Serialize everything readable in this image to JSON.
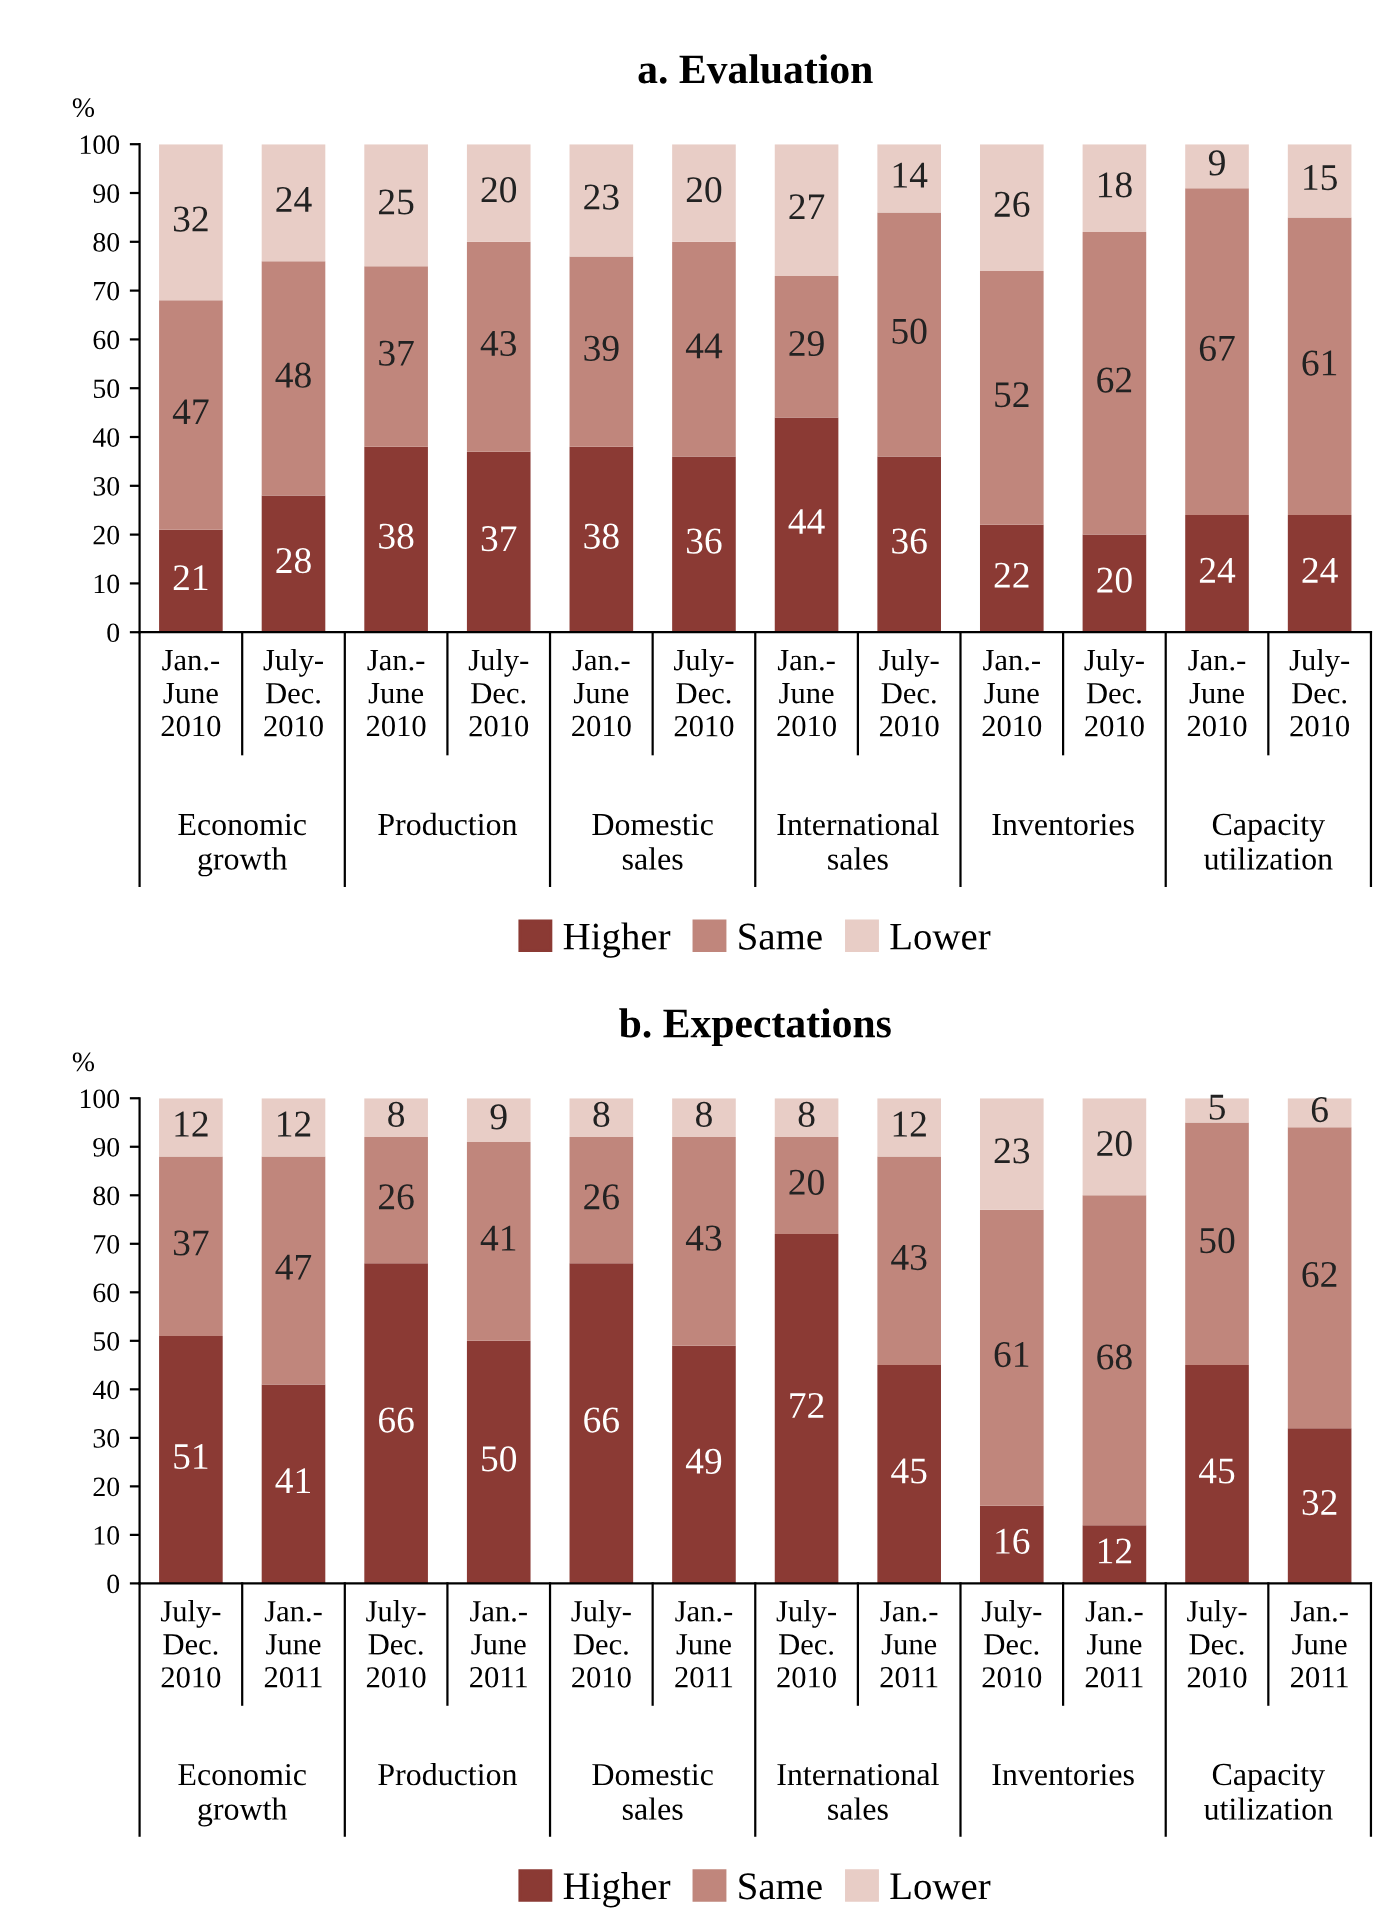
{
  "chart_data": [
    {
      "type": "bar",
      "title": "a. Evaluation",
      "ylabel": "%",
      "stacked": true,
      "categories": [
        "Jan.-\nJune\n2010",
        "July-\nDec.\n2010",
        "Jan.-\nJune\n2010",
        "July-\nDec.\n2010",
        "Jan.-\nJune\n2010",
        "July-\nDec.\n2010",
        "Jan.-\nJune\n2010",
        "July-\nDec.\n2010",
        "Jan.-\nJune\n2010",
        "July-\nDec.\n2010",
        "Jan.-\nJune\n2010",
        "July-\nDec.\n2010"
      ],
      "series": [
        {
          "name": "Higher",
          "color": "#8b3a34",
          "values": [
            21,
            28,
            38,
            37,
            38,
            36,
            44,
            36,
            22,
            20,
            24,
            24
          ]
        },
        {
          "name": "Same",
          "color": "#c0867c",
          "values": [
            47,
            48,
            37,
            43,
            39,
            44,
            29,
            50,
            52,
            62,
            67,
            61
          ]
        },
        {
          "name": "Lower",
          "color": "#e8cdc6",
          "values": [
            32,
            24,
            25,
            20,
            23,
            20,
            27,
            14,
            26,
            18,
            9,
            15
          ]
        }
      ],
      "annotations": [
        "Economic\ngrowth",
        "Production",
        "Domestic\nsales",
        "International\nsales",
        "Inventories",
        "Capacity\nutilization"
      ],
      "ylim": [
        0,
        100
      ],
      "yticks": [
        0,
        10,
        20,
        30,
        40,
        50,
        60,
        70,
        80,
        90,
        100
      ],
      "grid": false,
      "legend": "bottom",
      "data_labels": true
    },
    {
      "type": "bar",
      "title": "b. Expectations",
      "ylabel": "%",
      "stacked": true,
      "categories": [
        "July-\nDec.\n2010",
        "Jan.-\nJune\n2011",
        "July-\nDec.\n2010",
        "Jan.-\nJune\n2011",
        "July-\nDec.\n2010",
        "Jan.-\nJune\n2011",
        "July-\nDec.\n2010",
        "Jan.-\nJune\n2011",
        "July-\nDec.\n2010",
        "Jan.-\nJune\n2011",
        "July-\nDec.\n2010",
        "Jan.-\nJune\n2011"
      ],
      "series": [
        {
          "name": "Higher",
          "color": "#8b3a34",
          "values": [
            51,
            41,
            66,
            50,
            66,
            49,
            72,
            45,
            16,
            12,
            45,
            32
          ]
        },
        {
          "name": "Same",
          "color": "#c0867c",
          "values": [
            37,
            47,
            26,
            41,
            26,
            43,
            20,
            43,
            61,
            68,
            50,
            62
          ]
        },
        {
          "name": "Lower",
          "color": "#e8cdc6",
          "values": [
            12,
            12,
            8,
            9,
            8,
            8,
            8,
            12,
            23,
            20,
            5,
            6
          ]
        }
      ],
      "annotations": [
        "Economic\ngrowth",
        "Production",
        "Domestic\nsales",
        "International\nsales",
        "Inventories",
        "Capacity\nutilization"
      ],
      "ylim": [
        0,
        100
      ],
      "yticks": [
        0,
        10,
        20,
        30,
        40,
        50,
        60,
        70,
        80,
        90,
        100
      ],
      "grid": false,
      "legend": "bottom",
      "data_labels": true
    }
  ]
}
